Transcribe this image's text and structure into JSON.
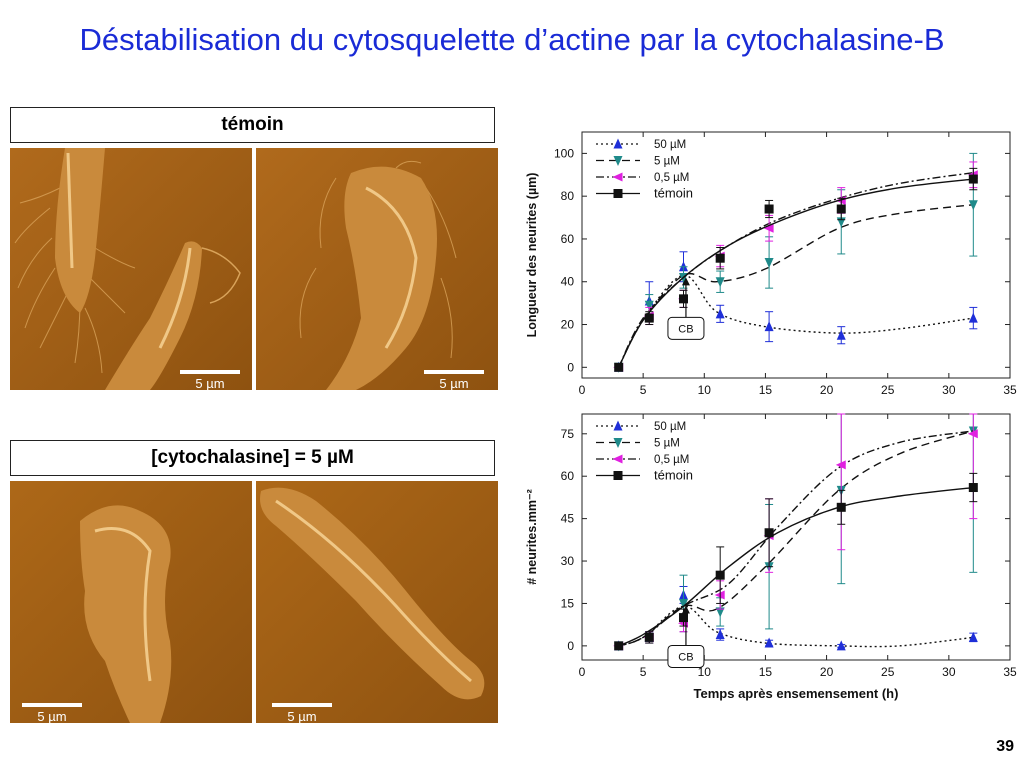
{
  "slide": {
    "title": "Déstabilisation du cytosquelette d’actine par la cytochalasine-B",
    "page_number": "39"
  },
  "panels": {
    "control_label": "témoin",
    "treated_label": "[cytochalasine]   =  5 µM",
    "scale_bar": "5 µm"
  },
  "chart_data": [
    {
      "type": "line",
      "title": "",
      "xlabel": "",
      "ylabel": "Longueur des neurites (µm)",
      "xlim": [
        0,
        35
      ],
      "ylim": [
        -5,
        110
      ],
      "xticks": [
        0,
        5,
        10,
        15,
        20,
        25,
        30,
        35
      ],
      "yticks": [
        0,
        20,
        40,
        60,
        80,
        100
      ],
      "annotation": {
        "text": "CB",
        "x": 8.5,
        "y": 43
      },
      "legend_position": "top-left",
      "x": [
        3,
        5.5,
        8.3,
        11.3,
        15.3,
        21.2,
        32
      ],
      "series": [
        {
          "name": "50 µM",
          "marker": "triangle-up",
          "color": "#1f2fd8",
          "line": "dotted",
          "points": [
            [
              3,
              0
            ],
            [
              5.5,
              31
            ],
            [
              8.3,
              47
            ],
            [
              11.3,
              25
            ],
            [
              15.3,
              19
            ],
            [
              21.2,
              15
            ],
            [
              32,
              23
            ]
          ],
          "errors": [
            1,
            9,
            7,
            4,
            7,
            4,
            5
          ],
          "curve": [
            [
              3,
              0
            ],
            [
              5,
              22
            ],
            [
              8.3,
              43
            ],
            [
              11,
              26
            ],
            [
              15,
              19
            ],
            [
              21,
              16
            ],
            [
              26,
              18
            ],
            [
              32,
              23
            ]
          ]
        },
        {
          "name": "5 µM",
          "marker": "triangle-down",
          "color": "#1f8a8a",
          "line": "dashed",
          "points": [
            [
              3,
              0
            ],
            [
              5.5,
              29
            ],
            [
              8.3,
              42
            ],
            [
              11.3,
              40
            ],
            [
              15.3,
              49
            ],
            [
              21.2,
              68
            ],
            [
              32,
              76
            ]
          ],
          "errors": [
            1,
            5,
            5,
            5,
            12,
            15,
            24
          ],
          "curve": [
            [
              3,
              0
            ],
            [
              5,
              22
            ],
            [
              8.3,
              43
            ],
            [
              11,
              40
            ],
            [
              15,
              46
            ],
            [
              21,
              65
            ],
            [
              26,
              72
            ],
            [
              32,
              76
            ]
          ]
        },
        {
          "name": "0,5 µM",
          "marker": "triangle-left",
          "color": "#e020e0",
          "line": "dash-dot",
          "points": [
            [
              3,
              0
            ],
            [
              5.5,
              24
            ],
            [
              8.3,
              32
            ],
            [
              11.3,
              52
            ],
            [
              15.3,
              65
            ],
            [
              21.2,
              78
            ],
            [
              32,
              90
            ]
          ],
          "errors": [
            1,
            4,
            4,
            5,
            6,
            6,
            6
          ],
          "curve": [
            [
              3,
              0
            ],
            [
              5,
              23
            ],
            [
              8.3,
              42
            ],
            [
              12,
              57
            ],
            [
              16,
              69
            ],
            [
              21,
              79
            ],
            [
              26,
              86
            ],
            [
              32,
              91
            ]
          ]
        },
        {
          "name": "témoin",
          "marker": "square",
          "color": "#111111",
          "line": "solid",
          "points": [
            [
              3,
              0
            ],
            [
              5.5,
              23
            ],
            [
              8.3,
              32
            ],
            [
              11.3,
              51
            ],
            [
              15.3,
              74
            ],
            [
              21.2,
              74
            ],
            [
              32,
              88
            ]
          ],
          "errors": [
            1,
            3,
            4,
            5,
            4,
            5,
            5
          ],
          "curve": [
            [
              3,
              0
            ],
            [
              5,
              22
            ],
            [
              8.3,
              42
            ],
            [
              12,
              57
            ],
            [
              16,
              68
            ],
            [
              21,
              78
            ],
            [
              26,
              84
            ],
            [
              32,
              88
            ]
          ]
        }
      ]
    },
    {
      "type": "line",
      "title": "",
      "xlabel": "Temps après ensemensement (h)",
      "ylabel": "# neurites.mm⁻²",
      "xlim": [
        0,
        35
      ],
      "ylim": [
        -5,
        82
      ],
      "xticks": [
        0,
        5,
        10,
        15,
        20,
        25,
        30,
        35
      ],
      "yticks": [
        0,
        15,
        30,
        45,
        60,
        75
      ],
      "annotation": {
        "text": "CB",
        "x": 8.5,
        "y": 15
      },
      "legend_position": "top-left",
      "x": [
        3,
        5.5,
        8.3,
        11.3,
        15.3,
        21.2,
        32
      ],
      "series": [
        {
          "name": "50 µM",
          "marker": "triangle-up",
          "color": "#1f2fd8",
          "line": "dotted",
          "points": [
            [
              3,
              0
            ],
            [
              5.5,
              3
            ],
            [
              8.3,
              18
            ],
            [
              11.3,
              4
            ],
            [
              15.3,
              1
            ],
            [
              21.2,
              0
            ],
            [
              32,
              3
            ]
          ],
          "errors": [
            1,
            2,
            3,
            2,
            1,
            0.5,
            1.5
          ],
          "curve": [
            [
              3,
              0
            ],
            [
              5,
              3
            ],
            [
              8.3,
              14
            ],
            [
              11,
              5
            ],
            [
              15,
              1
            ],
            [
              21,
              0
            ],
            [
              26,
              0
            ],
            [
              32,
              3
            ]
          ]
        },
        {
          "name": "5 µM",
          "marker": "triangle-down",
          "color": "#1f8a8a",
          "line": "dashed",
          "points": [
            [
              3,
              0
            ],
            [
              5.5,
              3
            ],
            [
              8.3,
              15
            ],
            [
              11.3,
              12
            ],
            [
              15.3,
              28
            ],
            [
              21.2,
              55
            ],
            [
              32,
              76
            ]
          ],
          "errors": [
            1,
            2,
            10,
            5,
            22,
            33,
            50
          ],
          "curve": [
            [
              3,
              0
            ],
            [
              5,
              3
            ],
            [
              8.3,
              14
            ],
            [
              11,
              13
            ],
            [
              15,
              28
            ],
            [
              21,
              55
            ],
            [
              26,
              68
            ],
            [
              32,
              76
            ]
          ]
        },
        {
          "name": "0,5 µM",
          "marker": "triangle-left",
          "color": "#e020e0",
          "line": "dash-dot",
          "points": [
            [
              3,
              0
            ],
            [
              5.5,
              3
            ],
            [
              8.3,
              8
            ],
            [
              11.3,
              18
            ],
            [
              15.3,
              39
            ],
            [
              21.2,
              64
            ],
            [
              32,
              75
            ]
          ],
          "errors": [
            1,
            2,
            3,
            5,
            13,
            30,
            30
          ],
          "curve": [
            [
              3,
              0
            ],
            [
              5,
              3
            ],
            [
              8.3,
              14
            ],
            [
              12,
              22
            ],
            [
              16,
              42
            ],
            [
              21,
              63
            ],
            [
              26,
              72
            ],
            [
              32,
              76
            ]
          ]
        },
        {
          "name": "témoin",
          "marker": "square",
          "color": "#111111",
          "line": "solid",
          "points": [
            [
              3,
              0
            ],
            [
              5.5,
              3
            ],
            [
              8.3,
              10
            ],
            [
              11.3,
              25
            ],
            [
              15.3,
              40
            ],
            [
              21.2,
              49
            ],
            [
              32,
              56
            ]
          ],
          "errors": [
            1,
            2,
            3,
            10,
            12,
            6,
            5
          ],
          "curve": [
            [
              3,
              0
            ],
            [
              5,
              4
            ],
            [
              8.3,
              14
            ],
            [
              12,
              28
            ],
            [
              16,
              40
            ],
            [
              21,
              49
            ],
            [
              26,
              53
            ],
            [
              32,
              56
            ]
          ]
        }
      ]
    }
  ]
}
